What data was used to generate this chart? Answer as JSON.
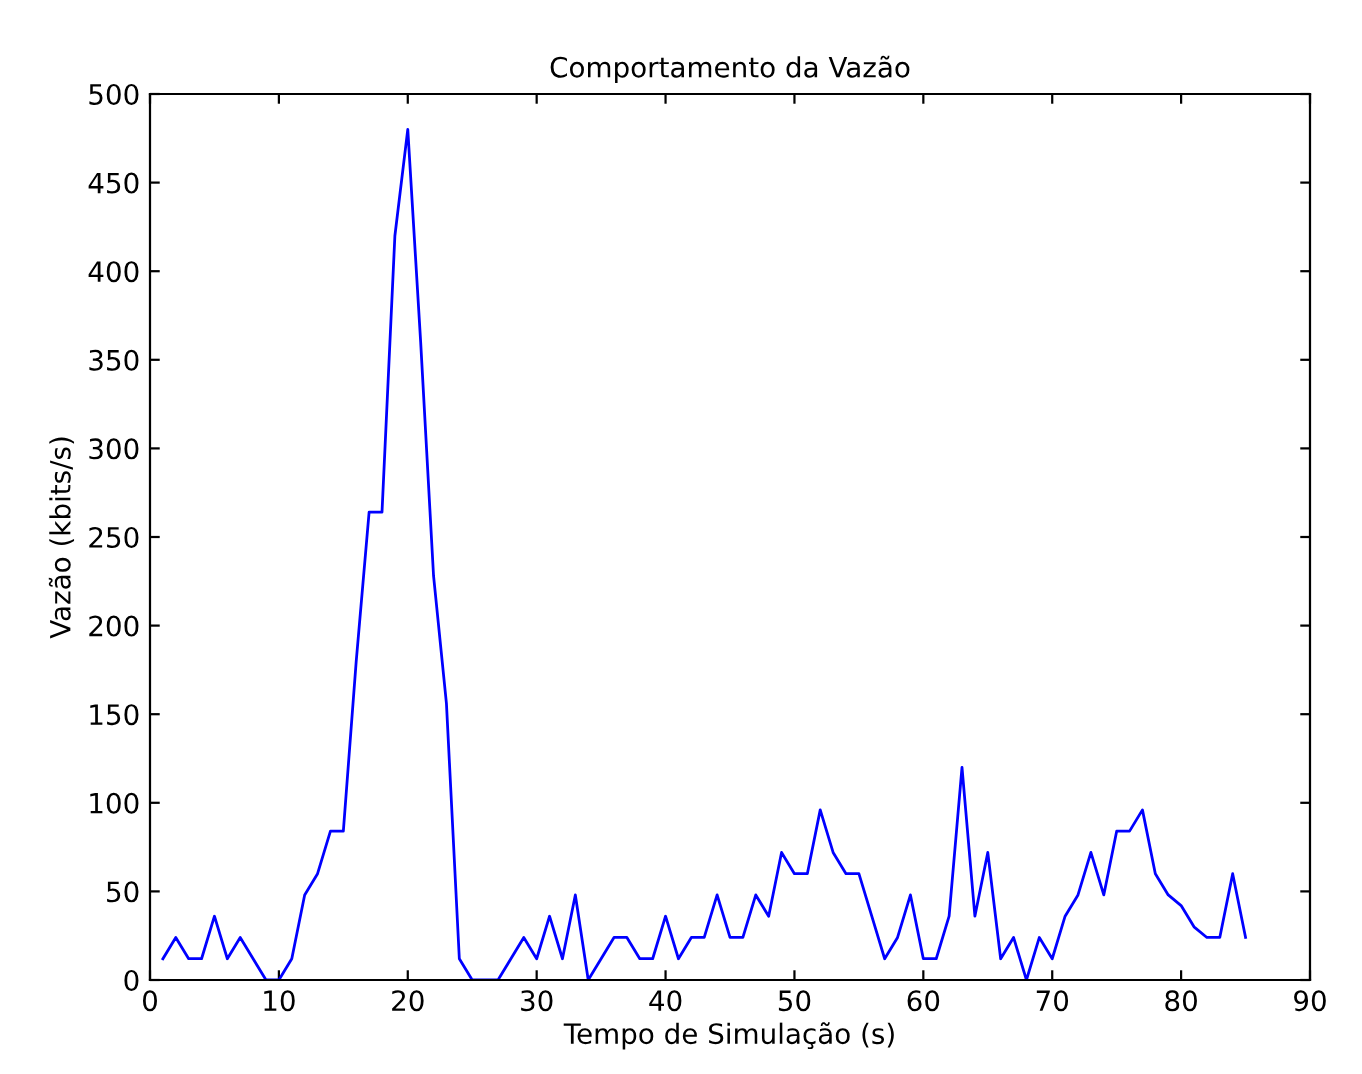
{
  "chart_data": {
    "type": "line",
    "title": "Comportamento da Vazão",
    "xlabel": "Tempo de Simulação (s)",
    "ylabel": "Vazão (kbits/s)",
    "x": [
      1,
      2,
      3,
      4,
      5,
      6,
      7,
      8,
      9,
      10,
      11,
      12,
      13,
      14,
      15,
      16,
      17,
      18,
      19,
      20,
      21,
      22,
      23,
      24,
      25,
      26,
      27,
      28,
      29,
      30,
      31,
      32,
      33,
      34,
      35,
      36,
      37,
      38,
      39,
      40,
      41,
      42,
      43,
      44,
      45,
      46,
      47,
      48,
      49,
      50,
      51,
      52,
      53,
      54,
      55,
      56,
      57,
      58,
      59,
      60,
      61,
      62,
      63,
      64,
      65,
      66,
      67,
      68,
      69,
      70,
      71,
      72,
      73,
      74,
      75,
      76,
      77,
      78,
      79,
      80,
      81,
      82,
      83,
      84,
      85
    ],
    "series": [
      {
        "color": "#0000ff",
        "values": [
          12,
          24,
          12,
          12,
          36,
          12,
          24,
          12,
          0,
          0,
          12,
          48,
          60,
          84,
          84,
          180,
          264,
          264,
          420,
          480,
          360,
          228,
          156,
          12,
          0,
          0,
          0,
          12,
          24,
          12,
          36,
          12,
          48,
          0,
          12,
          24,
          24,
          12,
          12,
          36,
          12,
          24,
          24,
          48,
          24,
          24,
          48,
          36,
          72,
          60,
          60,
          96,
          72,
          60,
          60,
          36,
          12,
          24,
          48,
          12,
          12,
          36,
          120,
          36,
          72,
          12,
          24,
          0,
          24,
          12,
          36,
          48,
          72,
          48,
          84,
          84,
          96,
          60,
          48,
          42,
          30,
          24,
          24,
          60,
          24
        ]
      }
    ],
    "xlim": [
      0,
      90
    ],
    "ylim": [
      0,
      500
    ],
    "xticks": [
      0,
      10,
      20,
      30,
      40,
      50,
      60,
      70,
      80,
      90
    ],
    "yticks": [
      0,
      50,
      100,
      150,
      200,
      250,
      300,
      350,
      400,
      450,
      500
    ],
    "grid": false,
    "legend": false,
    "marker": "none",
    "line_style": "solid"
  }
}
